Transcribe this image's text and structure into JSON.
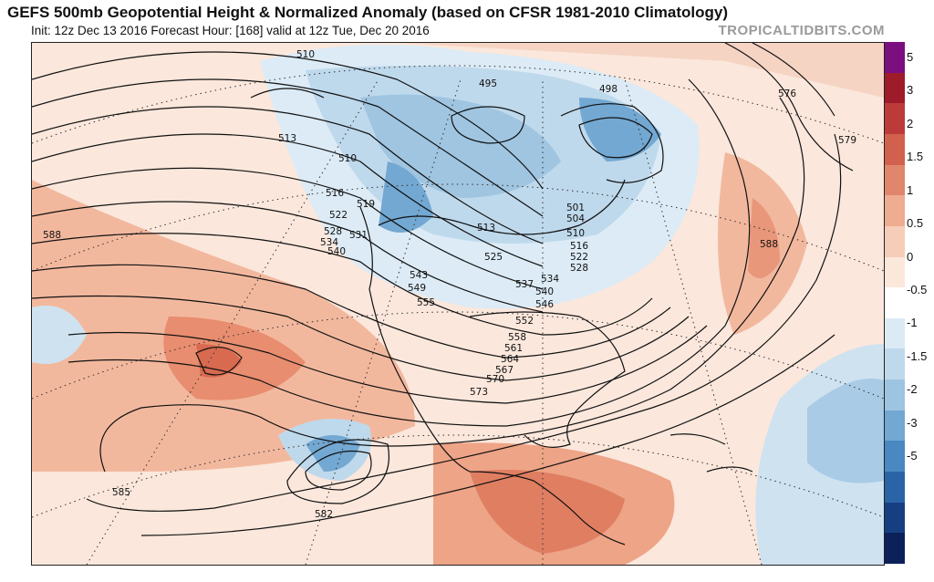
{
  "title": "GEFS 500mb Geopotential Height & Normalized Anomaly (based on CFSR 1981-2010 Climatology)",
  "subtitle": "Init: 12z Dec 13 2016   Forecast Hour: [168]   valid at 12z Tue, Dec 20 2016",
  "credit": "TROPICALTIDBITS.COM",
  "colorbar": {
    "colors": [
      "#7b0f7f",
      "#9e1b2a",
      "#bd3a3a",
      "#d2604f",
      "#e0866c",
      "#eeac91",
      "#f6cdb8",
      "#fce7db",
      "#ffffff",
      "#dceaf5",
      "#bfd9ec",
      "#9dc4e0",
      "#73a8d2",
      "#4a88c2",
      "#2a64a6",
      "#163f82",
      "#0c205a"
    ],
    "ticks": [
      "5",
      "3",
      "2",
      "1.5",
      "1",
      "0.5",
      "0",
      "-0.5",
      "-1",
      "-1.5",
      "-2",
      "-3",
      "-5"
    ]
  },
  "contour_labels": [
    "510",
    "513",
    "510",
    "516",
    "519",
    "522",
    "528",
    "531",
    "534",
    "540",
    "543",
    "549",
    "555",
    "495",
    "498",
    "501",
    "504",
    "510",
    "513",
    "516",
    "522",
    "525",
    "528",
    "534",
    "537",
    "540",
    "546",
    "552",
    "558",
    "561",
    "564",
    "567",
    "570",
    "573",
    "576",
    "579",
    "588",
    "588",
    "585",
    "582"
  ]
}
